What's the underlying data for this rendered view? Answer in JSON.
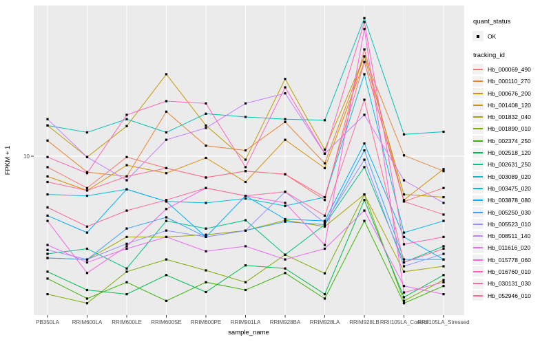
{
  "chart_data": {
    "type": "line",
    "title": "",
    "xlabel": "sample_name",
    "ylabel": "FPKM + 1",
    "y_scale": "log10",
    "y_tick_labels": [
      "10"
    ],
    "y_tick_values": [
      10
    ],
    "y_range_approx": [
      1.7,
      55
    ],
    "grid": "white-on-gray",
    "panel_bg": "#EBEBEB",
    "grid_color": "#FFFFFF",
    "tick_label_color": "#4D4D4D",
    "point_color": "#000000",
    "legend_position": "right",
    "categories": [
      "PB350LA",
      "RRIM600LA",
      "RRIM600LE",
      "RRIM600SE",
      "RRIM600PE",
      "RRIM901LA",
      "RRIM928BA",
      "RRIM928LA",
      "RRIM928LB",
      "RRII105LA_Control",
      "RRII105LA_Stressed"
    ],
    "legend": {
      "quant_status": {
        "title": "quant_status",
        "items": [
          {
            "label": "OK",
            "symbol": "black-point"
          }
        ]
      },
      "tracking_id": {
        "title": "tracking_id"
      }
    },
    "series": [
      {
        "name": "Hb_000069_490",
        "color": "#F8766D",
        "values": [
          8.8,
          6.9,
          9.9,
          8.7,
          7.8,
          8.4,
          8.1,
          6.0,
          34.7,
          5.9,
          6.9
        ]
      },
      {
        "name": "Hb_000110_270",
        "color": "#EA8331",
        "values": [
          12.0,
          8.3,
          7.9,
          16.8,
          11.3,
          10.7,
          14.9,
          9.2,
          32.0,
          10.1,
          8.4
        ]
      },
      {
        "name": "Hb_000676_200",
        "color": "#D89000",
        "values": [
          7.9,
          6.7,
          9.0,
          8.2,
          9.8,
          7.4,
          12.1,
          8.7,
          30.0,
          6.0,
          8.6
        ]
      },
      {
        "name": "Hb_001408_120",
        "color": "#C09B00",
        "values": [
          14.3,
          9.9,
          14.2,
          26.0,
          14.3,
          9.6,
          24.6,
          10.8,
          32.0,
          6.4,
          6.2
        ]
      },
      {
        "name": "Hb_001832_040",
        "color": "#A3A500",
        "values": [
          3.05,
          3.0,
          3.9,
          3.9,
          4.0,
          4.2,
          4.74,
          4.4,
          6.4,
          2.6,
          2.77
        ]
      },
      {
        "name": "Hb_001890_010",
        "color": "#7CAE00",
        "values": [
          2.0,
          1.8,
          2.6,
          3.0,
          2.64,
          2.3,
          3.17,
          2.55,
          6.4,
          1.85,
          2.36
        ]
      },
      {
        "name": "Hb_002374_250",
        "color": "#39B600",
        "values": [
          2.4,
          1.9,
          2.3,
          1.85,
          2.3,
          2.1,
          2.56,
          1.9,
          4.7,
          1.8,
          2.2
        ]
      },
      {
        "name": "Hb_002518_120",
        "color": "#00BB4E",
        "values": [
          2.6,
          2.1,
          2.0,
          2.5,
          2.05,
          2.8,
          2.7,
          2.0,
          6.0,
          1.93,
          2.5
        ]
      },
      {
        "name": "Hb_002631_250",
        "color": "#00C087",
        "values": [
          3.2,
          3.4,
          2.7,
          4.7,
          4.3,
          4.74,
          3.17,
          4.5,
          8.8,
          2.9,
          3.5
        ]
      },
      {
        "name": "Hb_003089_020",
        "color": "#00C0B8",
        "values": [
          14.3,
          13.2,
          15.4,
          13.2,
          16.4,
          15.8,
          15.4,
          15.2,
          50.0,
          12.9,
          13.3
        ]
      },
      {
        "name": "Hb_003475_020",
        "color": "#00BAE0",
        "values": [
          6.4,
          6.3,
          6.8,
          5.9,
          5.8,
          6.1,
          5.6,
          6.2,
          26.0,
          4.1,
          4.7
        ]
      },
      {
        "name": "Hb_003878_080",
        "color": "#00ACFC",
        "values": [
          5.0,
          4.1,
          6.8,
          5.9,
          3.9,
          6.3,
          4.8,
          4.7,
          11.6,
          3.9,
          3.0
        ]
      },
      {
        "name": "Hb_005250_030",
        "color": "#35A2FF",
        "values": [
          3.05,
          3.0,
          4.3,
          4.9,
          3.9,
          4.2,
          4.66,
          4.5,
          10.7,
          3.0,
          3.0
        ]
      },
      {
        "name": "Hb_005523_010",
        "color": "#9590FF",
        "values": [
          3.35,
          3.0,
          3.6,
          4.2,
          3.9,
          4.2,
          6.6,
          4.6,
          9.6,
          2.77,
          3.2
        ]
      },
      {
        "name": "Hb_008511_140",
        "color": "#C77CFF",
        "values": [
          15.4,
          9.9,
          7.55,
          12.1,
          13.9,
          18.5,
          20.8,
          10.3,
          16.2,
          7.55,
          5.8
        ]
      },
      {
        "name": "Hb_011616_020",
        "color": "#E76BF3",
        "values": [
          3.55,
          2.9,
          3.4,
          3.9,
          3.3,
          3.5,
          3.0,
          3.4,
          5.3,
          2.2,
          2.0
        ]
      },
      {
        "name": "Hb_015778_060",
        "color": "#FA62DB",
        "values": [
          4.7,
          2.56,
          3.5,
          5.4,
          6.9,
          6.3,
          5.8,
          3.55,
          44.0,
          2.04,
          2.3
        ]
      },
      {
        "name": "Hb_016760_010",
        "color": "#FF62BC",
        "values": [
          9.9,
          8.2,
          16.2,
          19.0,
          18.5,
          8.8,
          22.3,
          10.3,
          47.8,
          3.58,
          3.9
        ]
      },
      {
        "name": "Hb_030131_030",
        "color": "#FF6A98",
        "values": [
          5.5,
          4.4,
          5.3,
          6.0,
          6.9,
          6.3,
          6.6,
          5.0,
          19.3,
          2.9,
          3.4
        ]
      },
      {
        "name": "Hb_052946_010",
        "color": "#FF6C90",
        "values": [
          7.4,
          6.7,
          7.9,
          8.7,
          7.8,
          8.4,
          8.1,
          6.2,
          30.0,
          5.9,
          5.06
        ]
      }
    ]
  }
}
